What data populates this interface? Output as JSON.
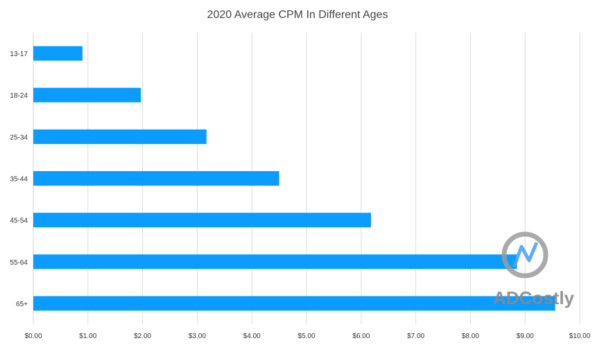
{
  "chart_data": {
    "type": "bar",
    "orientation": "horizontal",
    "title": "2020 Average CPM In Different Ages",
    "xlabel": "",
    "ylabel": "",
    "categories": [
      "13-17",
      "18-24",
      "25-34",
      "35-44",
      "45-54",
      "55-64",
      "65+"
    ],
    "values": [
      0.9,
      1.97,
      3.17,
      4.5,
      6.18,
      8.85,
      9.55
    ],
    "xlim": [
      0,
      10
    ],
    "x_ticks": [
      "$0.00",
      "$1.00",
      "$2.00",
      "$3.00",
      "$4.00",
      "$5.00",
      "$6.00",
      "$7.00",
      "$8.00",
      "$9.00",
      "$10.00"
    ],
    "grid": true,
    "bar_color": "#0a9cff",
    "watermark": "ADCostly"
  }
}
